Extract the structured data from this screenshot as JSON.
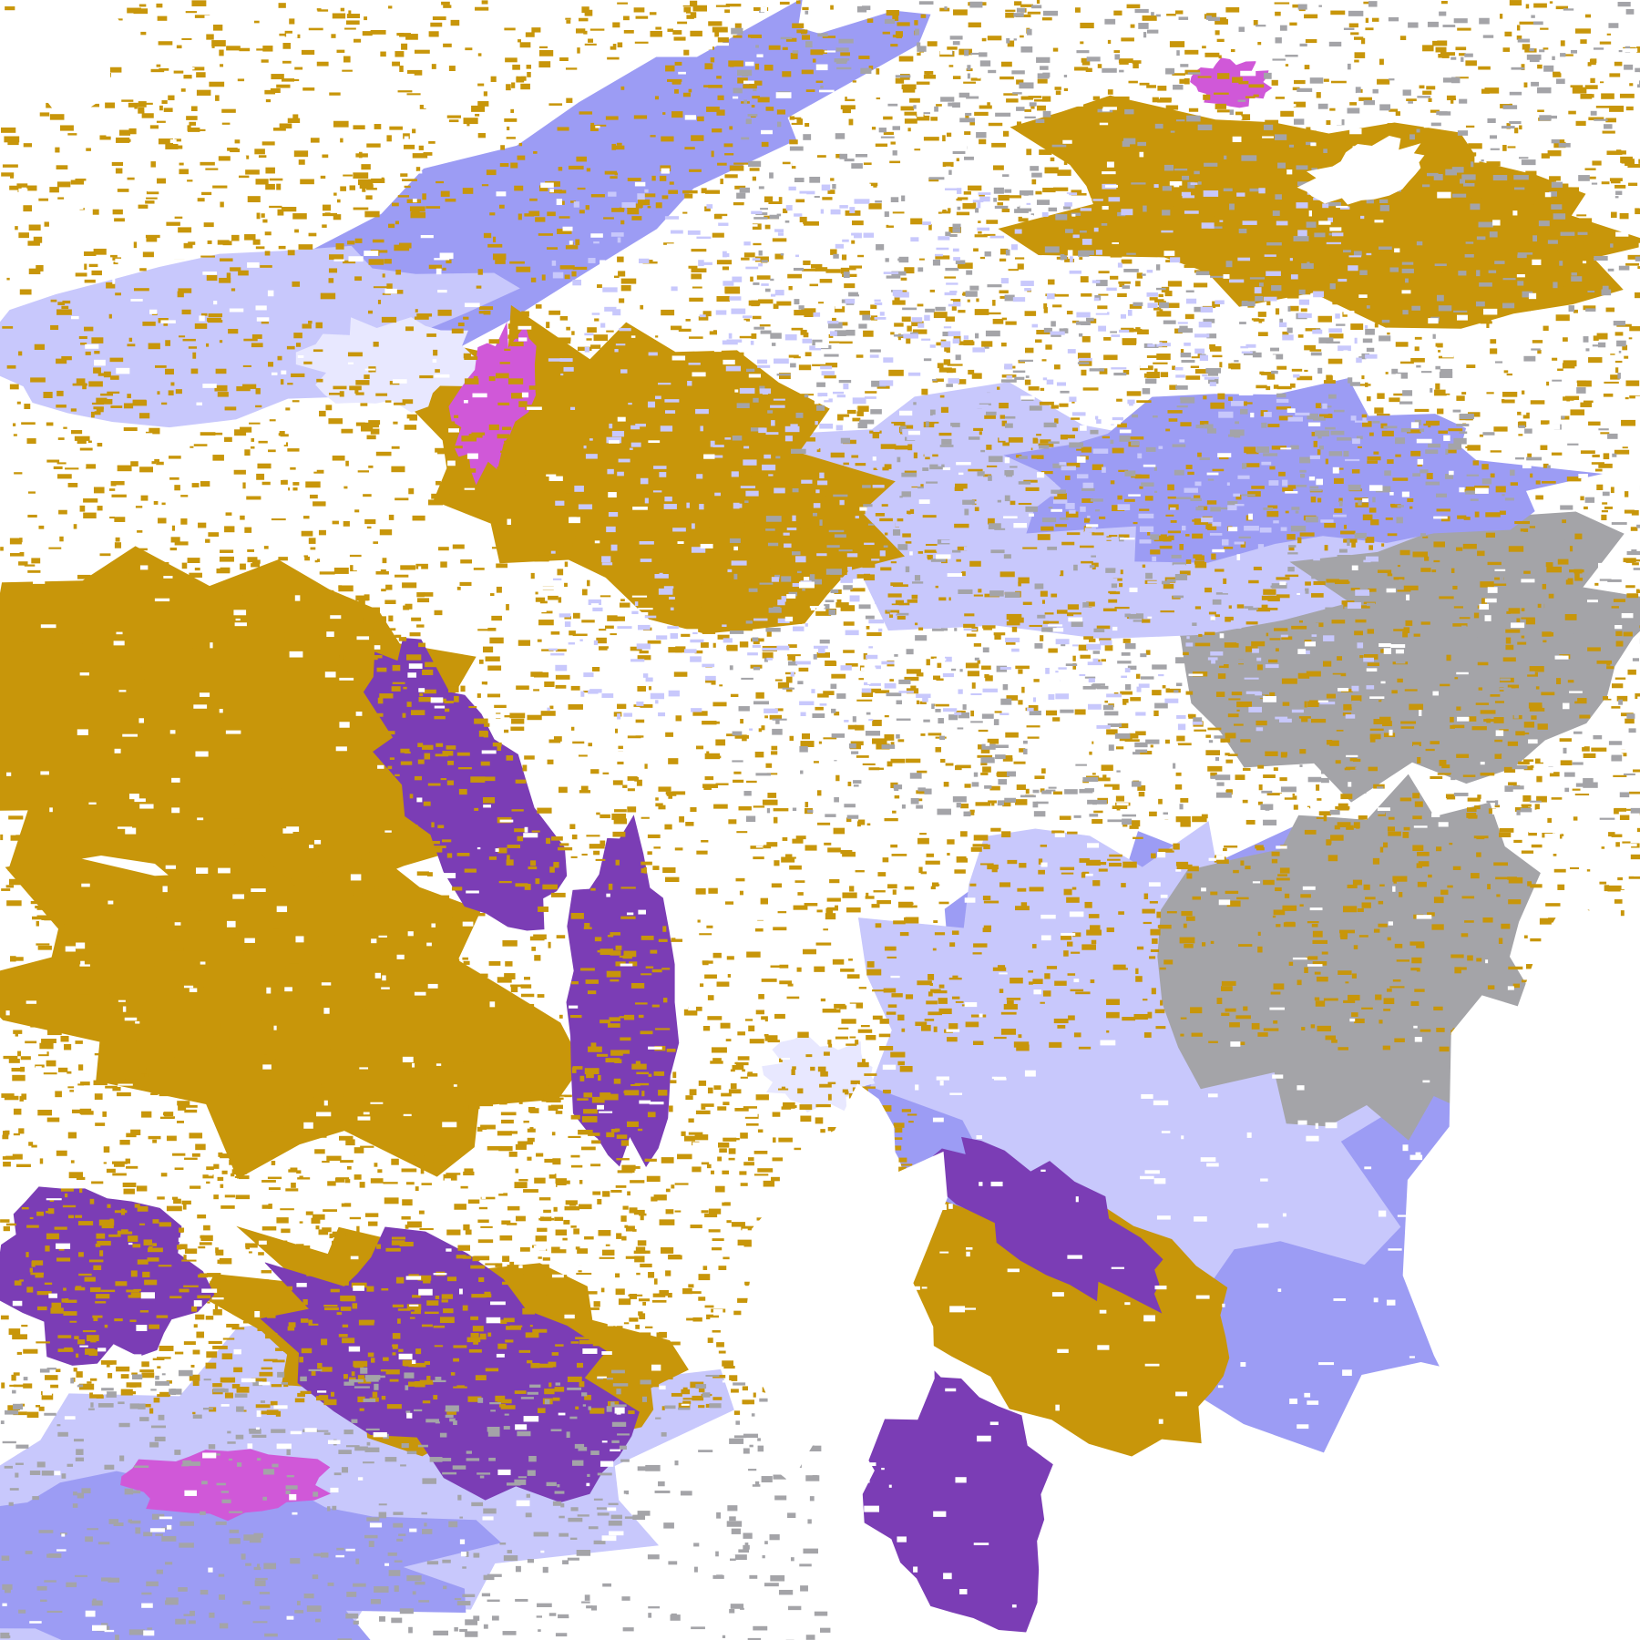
{
  "palette": {
    "background": "#ffffff",
    "gold": "#c8960a",
    "purple": "#7b3db5",
    "magenta": "#d058d8",
    "lavender": "#c8c8fc",
    "periwinkle": "#9c9cf4",
    "pale": "#e8e8ff",
    "gray": "#a4a4a8"
  }
}
